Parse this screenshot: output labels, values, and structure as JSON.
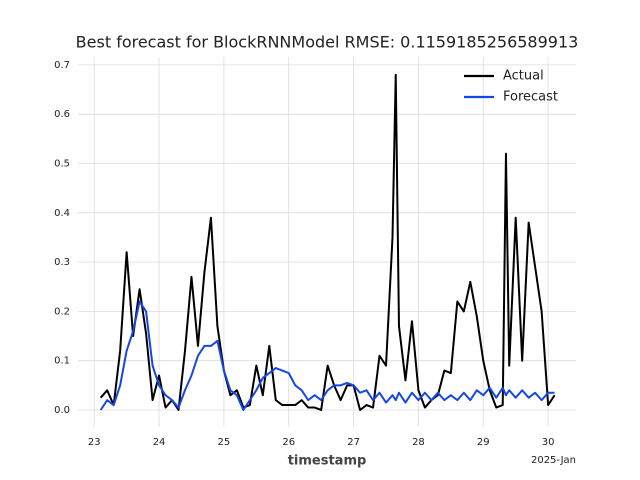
{
  "chart_data": {
    "type": "line",
    "title": "Best forecast for BlockRNNModel RMSE: 0.1159185256589913",
    "x_label": "timestamp",
    "x_offset_label": "2025-Jan",
    "x": [
      23.1,
      23.2,
      23.3,
      23.4,
      23.5,
      23.6,
      23.7,
      23.8,
      23.9,
      24.0,
      24.1,
      24.2,
      24.3,
      24.4,
      24.5,
      24.6,
      24.7,
      24.8,
      24.9,
      25.0,
      25.1,
      25.2,
      25.3,
      25.4,
      25.5,
      25.6,
      25.7,
      25.8,
      25.9,
      26.0,
      26.1,
      26.2,
      26.3,
      26.4,
      26.5,
      26.6,
      26.7,
      26.8,
      26.9,
      27.0,
      27.1,
      27.2,
      27.3,
      27.4,
      27.5,
      27.6,
      27.65,
      27.7,
      27.8,
      27.9,
      28.0,
      28.1,
      28.2,
      28.3,
      28.4,
      28.5,
      28.6,
      28.7,
      28.8,
      28.9,
      29.0,
      29.1,
      29.2,
      29.3,
      29.35,
      29.4,
      29.5,
      29.6,
      29.7,
      29.8,
      29.9,
      30.0,
      30.1
    ],
    "series": [
      {
        "name": "Actual",
        "color": "#000000",
        "values": [
          0.025,
          0.04,
          0.01,
          0.12,
          0.32,
          0.15,
          0.245,
          0.155,
          0.02,
          0.07,
          0.005,
          0.02,
          0.0,
          0.12,
          0.27,
          0.13,
          0.28,
          0.39,
          0.17,
          0.08,
          0.03,
          0.04,
          0.005,
          0.01,
          0.09,
          0.03,
          0.13,
          0.02,
          0.01,
          0.01,
          0.01,
          0.02,
          0.005,
          0.005,
          0.0,
          0.09,
          0.05,
          0.02,
          0.05,
          0.05,
          0.0,
          0.01,
          0.005,
          0.11,
          0.09,
          0.35,
          0.68,
          0.17,
          0.06,
          0.18,
          0.04,
          0.005,
          0.02,
          0.03,
          0.08,
          0.075,
          0.22,
          0.2,
          0.26,
          0.19,
          0.1,
          0.04,
          0.005,
          0.01,
          0.52,
          0.09,
          0.39,
          0.1,
          0.38,
          0.29,
          0.2,
          0.01,
          0.03
        ]
      },
      {
        "name": "Forecast",
        "color": "#1546e8",
        "values": [
          0.0,
          0.02,
          0.01,
          0.05,
          0.12,
          0.16,
          0.22,
          0.2,
          0.09,
          0.05,
          0.03,
          0.02,
          0.005,
          0.04,
          0.07,
          0.11,
          0.13,
          0.13,
          0.14,
          0.08,
          0.04,
          0.03,
          0.0,
          0.02,
          0.04,
          0.065,
          0.075,
          0.085,
          0.08,
          0.075,
          0.05,
          0.04,
          0.02,
          0.03,
          0.02,
          0.04,
          0.05,
          0.05,
          0.055,
          0.05,
          0.035,
          0.04,
          0.02,
          0.035,
          0.015,
          0.03,
          0.02,
          0.035,
          0.015,
          0.035,
          0.02,
          0.035,
          0.02,
          0.035,
          0.02,
          0.03,
          0.02,
          0.035,
          0.02,
          0.04,
          0.03,
          0.045,
          0.025,
          0.045,
          0.03,
          0.04,
          0.025,
          0.04,
          0.025,
          0.035,
          0.02,
          0.035,
          0.035
        ]
      }
    ],
    "xlim": [
      22.75,
      30.43
    ],
    "ylim": [
      -0.0345,
      0.716
    ],
    "xticks": [
      23,
      24,
      25,
      26,
      27,
      28,
      29,
      30
    ],
    "yticks": [
      {
        "value": 0,
        "label": "0.0"
      },
      0.1,
      0.2,
      0.3,
      0.4,
      0.5,
      0.6,
      0.7
    ],
    "grid": true,
    "legend": "upper right"
  }
}
